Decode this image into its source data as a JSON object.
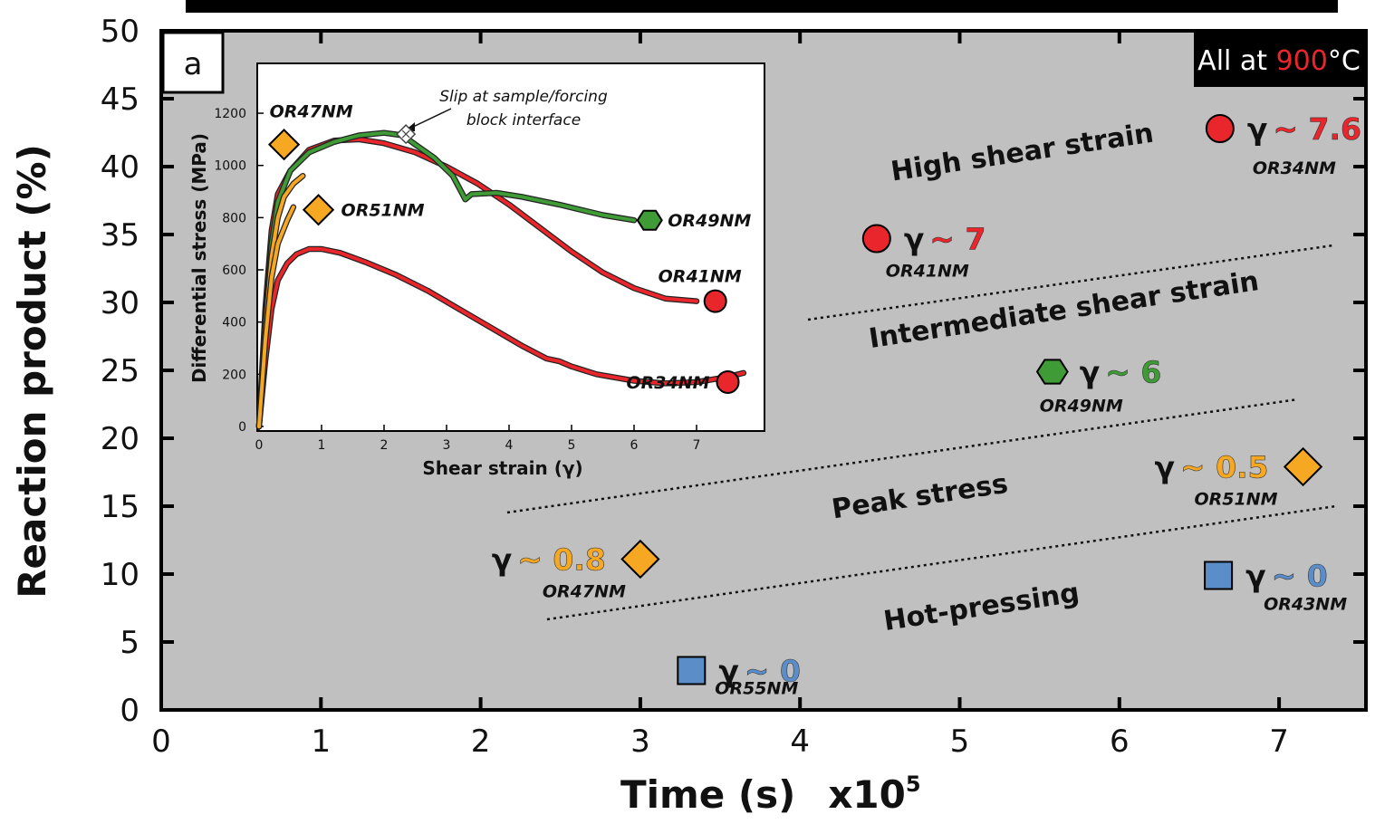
{
  "chart_data": [
    {
      "type": "scatter",
      "panel_letter": "a",
      "condition_prefix": "All at ",
      "condition_temp": "900",
      "condition_unit": "°C",
      "xlabel": "Time (s)",
      "x_multiplier_base": "x10",
      "x_multiplier_exp": "5",
      "ylabel": "Reaction product (%)",
      "xlim": [
        0,
        7.5
      ],
      "ylim": [
        0,
        50
      ],
      "xticks": [
        "0",
        "1",
        "2",
        "3",
        "4",
        "5",
        "6",
        "7"
      ],
      "yticks": [
        "0",
        "5",
        "10",
        "15",
        "20",
        "25",
        "30",
        "35",
        "40",
        "45",
        "50"
      ],
      "regions": [
        "High shear strain",
        "Intermediate shear strain",
        "Peak stress",
        "Hot-pressing"
      ],
      "points": [
        {
          "sample": "OR34NM",
          "x": 6.63,
          "y": 42.8,
          "gamma": "7.6",
          "marker": "circle",
          "color": "#e8262b"
        },
        {
          "sample": "OR41NM",
          "x": 4.48,
          "y": 34.7,
          "gamma": "7",
          "marker": "circle",
          "color": "#e8262b"
        },
        {
          "sample": "OR49NM",
          "x": 5.58,
          "y": 24.9,
          "gamma": "6",
          "marker": "hexagon",
          "color": "#3f9b35"
        },
        {
          "sample": "OR51NM",
          "x": 7.15,
          "y": 17.9,
          "gamma": "0.5",
          "marker": "diamond",
          "color": "#f7a823"
        },
        {
          "sample": "OR47NM",
          "x": 3.0,
          "y": 11.1,
          "gamma": "0.8",
          "marker": "diamond",
          "color": "#f7a823"
        },
        {
          "sample": "OR43NM",
          "x": 6.62,
          "y": 9.9,
          "gamma": "0",
          "marker": "square",
          "color": "#5b8ec9"
        },
        {
          "sample": "OR55NM",
          "x": 3.32,
          "y": 2.9,
          "gamma": "0",
          "marker": "square",
          "color": "#5b8ec9"
        }
      ]
    },
    {
      "type": "line",
      "xlabel": "Shear strain (γ)",
      "ylabel": "Differential stress (MPa)",
      "xlim": [
        0,
        8
      ],
      "ylim": [
        0,
        1200
      ],
      "xticks": [
        "0",
        "1",
        "2",
        "3",
        "4",
        "5",
        "6",
        "7"
      ],
      "yticks": [
        "0",
        "200",
        "400",
        "600",
        "800",
        "1000",
        "1200"
      ],
      "annotation": [
        "Slip at sample/forcing",
        "block interface"
      ],
      "series": [
        {
          "name": "OR34NM",
          "color": "#e8262b",
          "x": [
            0,
            0.1,
            0.2,
            0.3,
            0.45,
            0.6,
            0.8,
            1.0,
            1.3,
            1.7,
            2.2,
            2.7,
            3.2,
            3.7,
            4.2,
            4.6,
            4.8,
            5.0,
            5.4,
            6.0,
            6.5,
            7.0,
            7.5,
            7.75
          ],
          "y": [
            0,
            250,
            450,
            560,
            625,
            660,
            680,
            680,
            665,
            630,
            580,
            520,
            450,
            380,
            310,
            260,
            250,
            230,
            200,
            175,
            165,
            170,
            190,
            205
          ]
        },
        {
          "name": "OR41NM",
          "color": "#e8262b",
          "x": [
            0,
            0.1,
            0.2,
            0.3,
            0.5,
            0.8,
            1.2,
            1.6,
            2.0,
            2.5,
            3.0,
            3.5,
            4.0,
            4.5,
            5.0,
            5.5,
            6.0,
            6.5,
            7.0
          ],
          "y": [
            0,
            450,
            750,
            890,
            980,
            1060,
            1095,
            1100,
            1085,
            1050,
            995,
            930,
            850,
            760,
            670,
            590,
            530,
            490,
            480
          ]
        },
        {
          "name": "OR49NM",
          "color": "#3f9b35",
          "x": [
            0,
            0.1,
            0.2,
            0.3,
            0.5,
            0.8,
            1.2,
            1.6,
            2.0,
            2.3,
            2.5,
            2.8,
            3.1,
            3.3,
            3.4,
            3.8,
            4.2,
            4.8,
            5.5,
            6.0
          ],
          "y": [
            0,
            400,
            700,
            860,
            980,
            1050,
            1090,
            1115,
            1125,
            1115,
            1080,
            1030,
            960,
            870,
            890,
            895,
            880,
            850,
            810,
            790
          ]
        },
        {
          "name": "OR47NM",
          "color": "#f7a823",
          "x": [
            0,
            0.1,
            0.2,
            0.3,
            0.4,
            0.55,
            0.7
          ],
          "y": [
            0,
            380,
            650,
            800,
            880,
            930,
            960
          ]
        },
        {
          "name": "OR51NM",
          "color": "#f7a823",
          "x": [
            0,
            0.1,
            0.2,
            0.3,
            0.45,
            0.55
          ],
          "y": [
            0,
            330,
            570,
            700,
            790,
            840
          ]
        }
      ],
      "end_markers": [
        {
          "sample": "OR47NM",
          "marker": "diamond",
          "color": "#f7a823",
          "x": 0.4,
          "y": 1080
        },
        {
          "sample": "OR51NM",
          "marker": "diamond",
          "color": "#f7a823",
          "x": 0.95,
          "y": 830
        },
        {
          "sample": "OR49NM",
          "marker": "hexagon",
          "color": "#3f9b35",
          "x": 6.25,
          "y": 790
        },
        {
          "sample": "OR41NM",
          "marker": "circle",
          "color": "#e8262b",
          "x": 7.3,
          "y": 480
        },
        {
          "sample": "OR34NM",
          "marker": "circle",
          "color": "#e8262b",
          "x": 7.5,
          "y": 170
        }
      ],
      "slip_point": {
        "x": 2.35,
        "y": 1120
      }
    }
  ]
}
